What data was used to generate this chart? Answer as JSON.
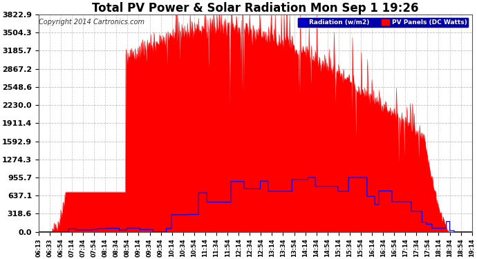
{
  "title": "Total PV Power & Solar Radiation Mon Sep 1 19:26",
  "copyright": "Copyright 2014 Cartronics.com",
  "yticks": [
    0.0,
    318.6,
    637.1,
    955.7,
    1274.3,
    1592.9,
    1911.4,
    2230.0,
    2548.6,
    2867.2,
    3185.7,
    3504.3,
    3822.9
  ],
  "ymax": 3822.9,
  "legend_radiation_label": "Radiation (w/m2)",
  "legend_pv_label": "PV Panels (DC Watts)",
  "fill_color": "#ff0000",
  "radiation_color": "#0000ff",
  "background_color": "#ffffff",
  "grid_color": "#aaaaaa",
  "title_fontsize": 12,
  "copyright_fontsize": 7,
  "xtick_fontsize": 6,
  "ytick_fontsize": 8
}
